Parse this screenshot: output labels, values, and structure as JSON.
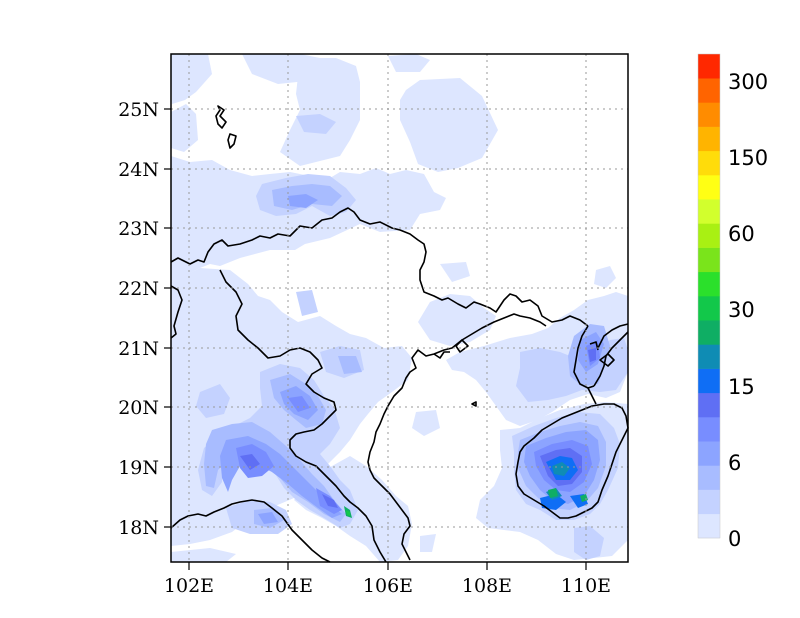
{
  "map": {
    "lon_range": [
      101.7,
      110.8
    ],
    "lat_range": [
      17.4,
      25.9
    ],
    "grid": "dotted",
    "lon_ticks": [
      "102E",
      "104E",
      "106E",
      "108E",
      "110E"
    ],
    "lon_tick_values": [
      102,
      104,
      106,
      108,
      110
    ],
    "lat_ticks": [
      "18N",
      "19N",
      "20N",
      "21N",
      "22N",
      "23N",
      "24N",
      "25N"
    ],
    "lat_tick_values": [
      18,
      19,
      20,
      21,
      22,
      23,
      24,
      25
    ],
    "land_color": "#ffffff",
    "coastline_color": "#000000"
  },
  "colorbar": {
    "orientation": "vertical",
    "placement": "right",
    "colors": [
      "#dde6ff",
      "#c4d2ff",
      "#a8bcff",
      "#8ca4ff",
      "#788dff",
      "#5f6ff4",
      "#0f6ef5",
      "#0f8cb4",
      "#0fae64",
      "#12c84a",
      "#2be02b",
      "#7ae41b",
      "#a9f013",
      "#d2ff2d",
      "#ffff14",
      "#ffdc0a",
      "#ffb400",
      "#ff8c00",
      "#ff6400",
      "#ff2800"
    ],
    "labels": [
      "0",
      "6",
      "15",
      "30",
      "60",
      "150",
      "300"
    ]
  }
}
